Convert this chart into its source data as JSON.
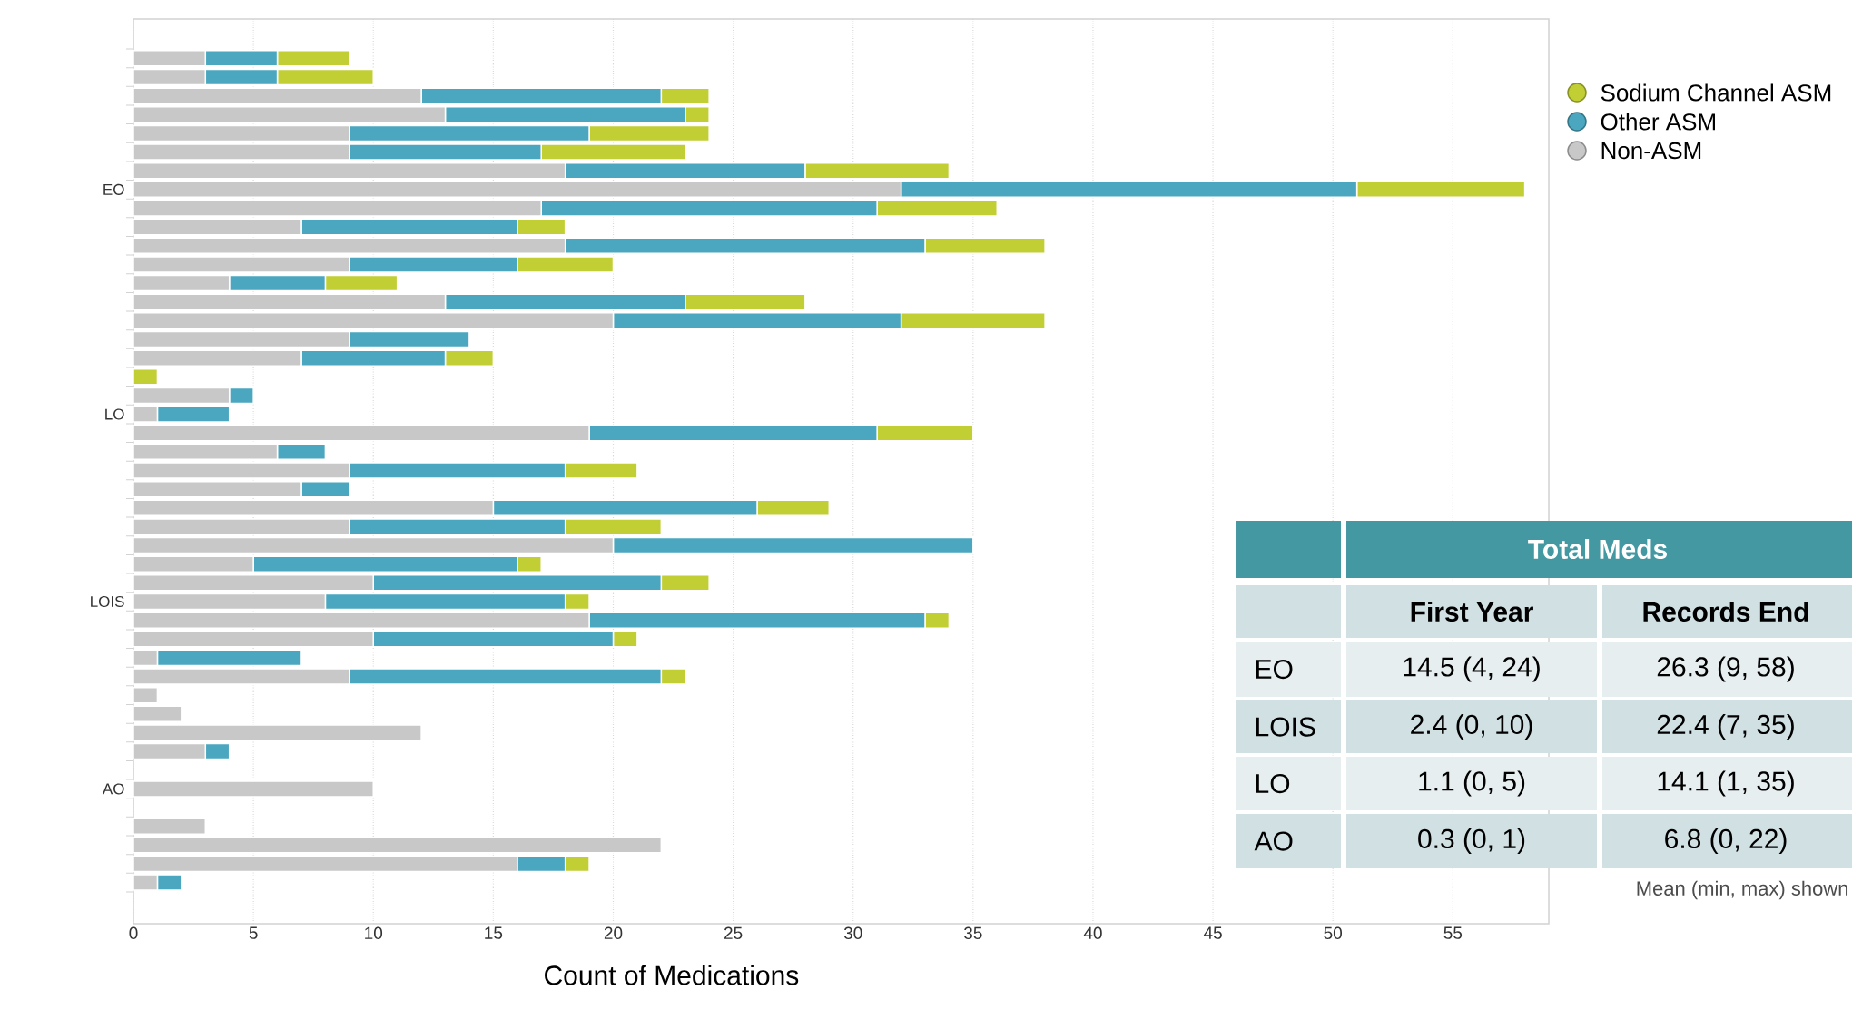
{
  "chart_data": {
    "type": "bar",
    "orientation": "horizontal",
    "stacked": true,
    "xlabel": "Count of Medications",
    "categories": [
      null,
      null,
      null,
      null,
      null,
      null,
      null,
      "EO",
      null,
      null,
      null,
      null,
      null,
      null,
      null,
      null,
      null,
      null,
      null,
      "LO",
      null,
      null,
      null,
      null,
      null,
      null,
      null,
      null,
      null,
      "LOIS",
      null,
      null,
      null,
      null,
      null,
      null,
      null,
      null,
      null,
      "AO",
      null,
      null,
      null,
      null,
      null
    ],
    "series": [
      {
        "name": "Non-ASM",
        "color": "#c8c8c8",
        "values": [
          3,
          3,
          12,
          13,
          9,
          9,
          18,
          32,
          17,
          7,
          18,
          9,
          4,
          13,
          20,
          9,
          7,
          0,
          4,
          1,
          19,
          6,
          9,
          7,
          15,
          9,
          20,
          5,
          10,
          8,
          19,
          10,
          1,
          9,
          1,
          2,
          12,
          3,
          0,
          10,
          0,
          3,
          22,
          16,
          1
        ]
      },
      {
        "name": "Other ASM",
        "color": "#4aa7bf",
        "values": [
          3,
          3,
          10,
          10,
          10,
          8,
          10,
          19,
          14,
          9,
          15,
          7,
          4,
          10,
          12,
          5,
          6,
          0,
          1,
          3,
          12,
          2,
          9,
          2,
          11,
          9,
          15,
          11,
          12,
          10,
          14,
          10,
          6,
          13,
          0,
          0,
          0,
          1,
          0,
          0,
          0,
          0,
          0,
          2,
          1
        ]
      },
      {
        "name": "Sodium Channel ASM",
        "color": "#c1cf35",
        "values": [
          3,
          4,
          2,
          1,
          5,
          6,
          6,
          7,
          5,
          2,
          5,
          4,
          3,
          5,
          6,
          0,
          2,
          1,
          0,
          0,
          4,
          0,
          3,
          0,
          3,
          4,
          0,
          1,
          2,
          1,
          1,
          1,
          0,
          1,
          0,
          0,
          0,
          0,
          0,
          0,
          0,
          0,
          0,
          1,
          0
        ]
      }
    ],
    "xlim": [
      0,
      59
    ],
    "xticks": [
      0,
      5,
      10,
      15,
      20,
      25,
      30,
      35,
      40,
      45,
      50,
      55
    ],
    "grid": "x",
    "legend": "top right",
    "annotations": [
      "Total Meds",
      "First Year",
      "Records End",
      "EO",
      "14.5 (4, 24)",
      "26.3 (9, 58)",
      "LOIS",
      "2.4 (0, 10)",
      "22.4 (7, 35)",
      "LO",
      "1.1 (0, 5)",
      "14.1 (1, 35)",
      "AO",
      "0.3 (0, 1)",
      "6.8 (0, 22)",
      "Mean (min, max) shown"
    ]
  }
}
